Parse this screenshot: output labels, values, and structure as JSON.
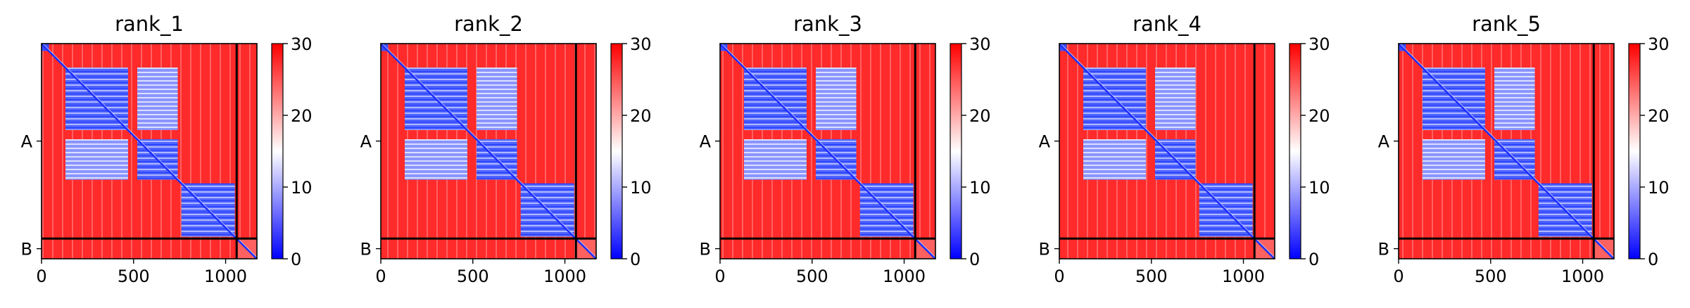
{
  "chart_data": {
    "type": "heatmap",
    "colormap": {
      "name": "bwr",
      "stops": [
        "#0000ff",
        "#ffffff",
        "#ff0000"
      ]
    },
    "colorbar": {
      "range": [
        0,
        30
      ],
      "ticks": [
        0,
        10,
        20,
        30
      ]
    },
    "x_ticks": [
      0,
      500,
      1000
    ],
    "x_range": [
      0,
      1170
    ],
    "y_range": [
      1170,
      0
    ],
    "chains": [
      {
        "label": "A",
        "start": 0,
        "end": 1060
      },
      {
        "label": "B",
        "start": 1060,
        "end": 1170
      }
    ],
    "chain_boundary": 1060,
    "domains": [
      [
        0,
        20
      ],
      [
        130,
        470
      ],
      [
        520,
        740
      ],
      [
        760,
        1050
      ],
      [
        1060,
        1170
      ]
    ],
    "panels": [
      {
        "title": "rank_1"
      },
      {
        "title": "rank_2"
      },
      {
        "title": "rank_3"
      },
      {
        "title": "rank_4"
      },
      {
        "title": "rank_5"
      }
    ]
  }
}
